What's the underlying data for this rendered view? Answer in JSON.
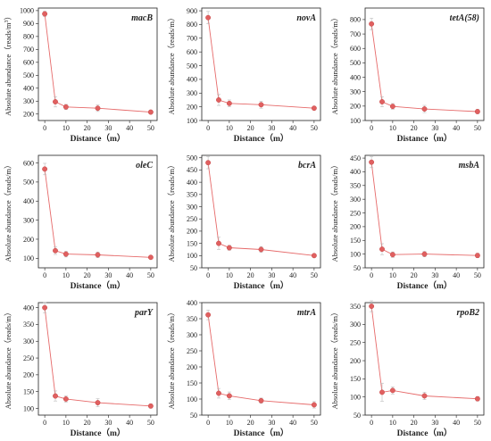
{
  "style": {
    "series_color": "#e06060",
    "error_color": "#bdbdbd",
    "axis_color": "#222222"
  },
  "shared": {
    "xlabel": "Distance（m）",
    "ylabel": "Absolute abundance（reads/m",
    "ylabel_sup": "3",
    "ylabel_close": "）",
    "x_ticks": [
      0,
      10,
      20,
      30,
      40,
      50
    ],
    "xlim": [
      -3,
      53
    ]
  },
  "chart_data": [
    {
      "type": "line",
      "gene": "macB",
      "x": [
        0,
        5,
        10,
        25,
        50
      ],
      "y": [
        975,
        295,
        255,
        245,
        215
      ],
      "err": [
        20,
        40,
        20,
        25,
        15
      ],
      "ylim": [
        150,
        1020
      ],
      "y_ticks": [
        200,
        300,
        400,
        500,
        600,
        700,
        800,
        900,
        1000
      ],
      "ylabel_sup_visible": true
    },
    {
      "type": "line",
      "gene": "novA",
      "x": [
        0,
        5,
        10,
        25,
        50
      ],
      "y": [
        850,
        250,
        225,
        215,
        190
      ],
      "err": [
        45,
        40,
        25,
        25,
        10
      ],
      "ylim": [
        100,
        920
      ],
      "y_ticks": [
        100,
        200,
        300,
        400,
        500,
        600,
        700,
        800,
        900
      ],
      "ylabel_sup_visible": false
    },
    {
      "type": "line",
      "gene": "tetA(58)",
      "x": [
        0,
        5,
        10,
        25,
        50
      ],
      "y": [
        770,
        230,
        198,
        180,
        162
      ],
      "err": [
        40,
        35,
        20,
        25,
        15
      ],
      "ylim": [
        100,
        880
      ],
      "y_ticks": [
        100,
        200,
        300,
        400,
        500,
        600,
        700,
        800
      ],
      "ylabel_sup_visible": false
    },
    {
      "type": "line",
      "gene": "oleC",
      "x": [
        0,
        5,
        10,
        25,
        50
      ],
      "y": [
        568,
        140,
        122,
        118,
        105
      ],
      "err": [
        30,
        20,
        15,
        15,
        8
      ],
      "ylim": [
        50,
        640
      ],
      "y_ticks": [
        100,
        200,
        300,
        400,
        500,
        600
      ],
      "ylabel_sup_visible": false
    },
    {
      "type": "line",
      "gene": "bcrA",
      "x": [
        0,
        5,
        10,
        25,
        50
      ],
      "y": [
        480,
        150,
        132,
        125,
        100
      ],
      "err": [
        25,
        25,
        10,
        12,
        6
      ],
      "ylim": [
        50,
        510
      ],
      "y_ticks": [
        50,
        100,
        150,
        200,
        250,
        300,
        350,
        400,
        450,
        500
      ],
      "ylabel_sup_visible": false
    },
    {
      "type": "line",
      "gene": "msbA",
      "x": [
        0,
        5,
        10,
        25,
        50
      ],
      "y": [
        435,
        118,
        98,
        100,
        95
      ],
      "err": [
        20,
        20,
        10,
        10,
        8
      ],
      "ylim": [
        50,
        460
      ],
      "y_ticks": [
        50,
        100,
        150,
        200,
        250,
        300,
        350,
        400,
        450
      ],
      "ylabel_sup_visible": false
    },
    {
      "type": "line",
      "gene": "parY",
      "x": [
        0,
        5,
        10,
        25,
        50
      ],
      "y": [
        400,
        137,
        128,
        117,
        107
      ],
      "err": [
        15,
        15,
        10,
        12,
        6
      ],
      "ylim": [
        80,
        415
      ],
      "y_ticks": [
        100,
        150,
        200,
        250,
        300,
        350,
        400
      ],
      "ylabel_sup_visible": false
    },
    {
      "type": "line",
      "gene": "mtrA",
      "x": [
        0,
        5,
        10,
        25,
        50
      ],
      "y": [
        362,
        118,
        110,
        95,
        82
      ],
      "err": [
        15,
        15,
        12,
        8,
        10
      ],
      "ylim": [
        50,
        400
      ],
      "y_ticks": [
        50,
        100,
        150,
        200,
        250,
        300,
        350,
        400
      ],
      "ylabel_sup_visible": false
    },
    {
      "type": "line",
      "gene": "rpoB2",
      "x": [
        0,
        5,
        10,
        25,
        50
      ],
      "y": [
        350,
        113,
        118,
        103,
        95
      ],
      "err": [
        15,
        25,
        10,
        10,
        6
      ],
      "ylim": [
        50,
        360
      ],
      "y_ticks": [
        50,
        100,
        150,
        200,
        250,
        300,
        350
      ],
      "ylabel_sup_visible": false
    }
  ]
}
